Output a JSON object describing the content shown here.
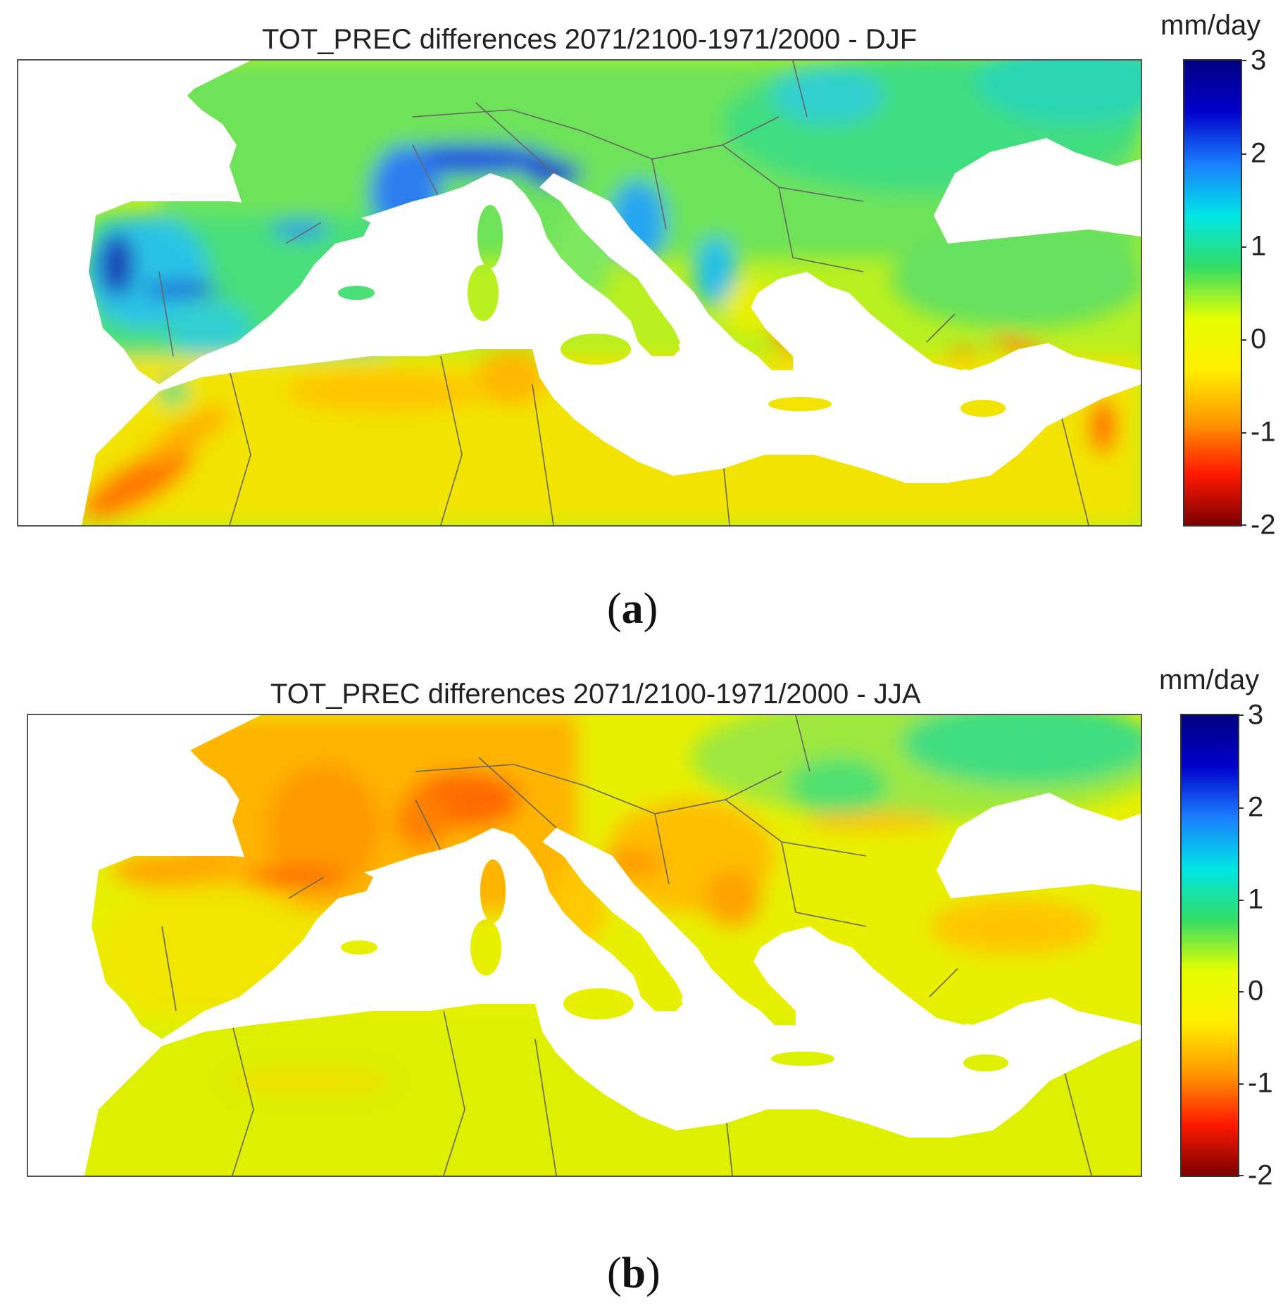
{
  "figure": {
    "panels": [
      {
        "title": "TOT_PREC differences 2071/2100-1971/2000 - DJF",
        "units": "mm/day",
        "letter": "a",
        "season": "DJF"
      },
      {
        "title": "TOT_PREC differences 2071/2100-1971/2000 - JJA",
        "units": "mm/day",
        "letter": "b",
        "season": "JJA"
      }
    ]
  },
  "chart_data": [
    {
      "type": "heatmap",
      "title": "TOT_PREC differences 2071/2100-1971/2000 - DJF",
      "colorbar": {
        "label": "mm/day",
        "range": [
          -2,
          3
        ],
        "ticks": [
          "3",
          "2",
          "1",
          "0",
          "-1",
          "-2"
        ],
        "colormap": [
          "#7a0000",
          "#ff1a00",
          "#ff9900",
          "#ffee00",
          "#e6ff00",
          "#33dd66",
          "#00e5e5",
          "#1a7fff",
          "#0000cc",
          "#000080"
        ]
      }
    },
    {
      "type": "heatmap",
      "title": "TOT_PREC differences 2071/2100-1971/2000 - JJA",
      "colorbar": {
        "label": "mm/day",
        "range": [
          -2,
          3
        ],
        "ticks": [
          "3",
          "2",
          "1",
          "0",
          "-1",
          "-2"
        ],
        "colormap": [
          "#7a0000",
          "#ff1a00",
          "#ff9900",
          "#ffee00",
          "#e6ff00",
          "#33dd66",
          "#00e5e5",
          "#1a7fff",
          "#0000cc",
          "#000080"
        ]
      }
    }
  ]
}
